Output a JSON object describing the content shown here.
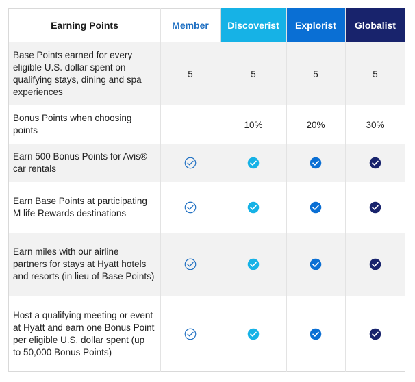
{
  "header": {
    "feature_label": "Earning Points",
    "tiers": [
      "Member",
      "Discoverist",
      "Explorist",
      "Globalist"
    ]
  },
  "colors": {
    "member": "#1e6fc2",
    "discoverist": "#16b2e6",
    "explorist": "#0a6fd4",
    "globalist": "#18236c",
    "row_gray": "#f2f2f2"
  },
  "rows": [
    {
      "label": "Base Points earned for every eligible U.S. dollar spent on qualifying stays, dining and spa experiences",
      "member": "5",
      "discoverist": "5",
      "explorist": "5",
      "globalist": "5"
    },
    {
      "label": "Bonus Points when choosing points",
      "member": "",
      "discoverist": "10%",
      "explorist": "20%",
      "globalist": "30%"
    },
    {
      "label": "Earn 500 Bonus Points for Avis® car rentals",
      "icons": [
        "check-outline-icon",
        "check-filled-icon",
        "check-filled-icon",
        "check-filled-icon"
      ]
    },
    {
      "label": "Earn Base Points at participating M life Rewards destinations",
      "icons": [
        "check-outline-icon",
        "check-filled-icon",
        "check-filled-icon",
        "check-filled-icon"
      ]
    },
    {
      "label": "Earn miles with our airline partners for stays at Hyatt hotels and resorts (in lieu of Base Points)",
      "icons": [
        "check-outline-icon",
        "check-filled-icon",
        "check-filled-icon",
        "check-filled-icon"
      ]
    },
    {
      "label": "Host a qualifying meeting or event at Hyatt and earn one Bonus Point per eligible U.S. dollar spent (up to 50,000 Bonus Points)",
      "icons": [
        "check-outline-icon",
        "check-filled-icon",
        "check-filled-icon",
        "check-filled-icon"
      ]
    }
  ]
}
